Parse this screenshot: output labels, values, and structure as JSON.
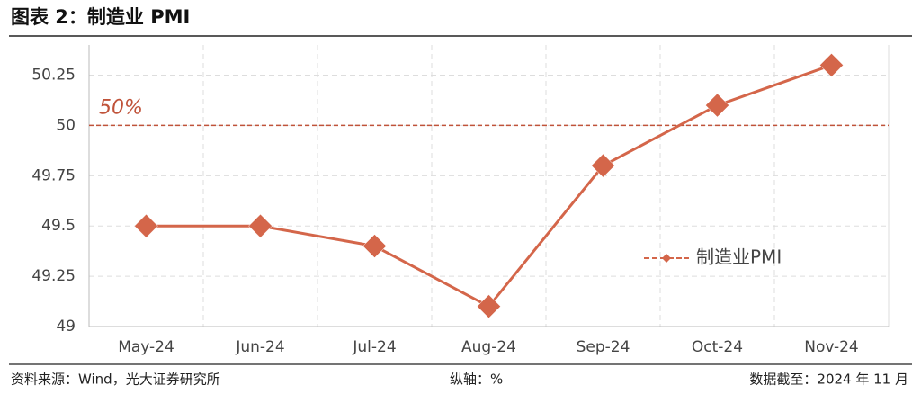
{
  "title": "图表 2：制造业 PMI",
  "chart_data": {
    "type": "line",
    "categories": [
      "May-24",
      "Jun-24",
      "Jul-24",
      "Aug-24",
      "Sep-24",
      "Oct-24",
      "Nov-24"
    ],
    "series": [
      {
        "name": "制造业PMI",
        "color": "#d4664a",
        "values": [
          49.5,
          49.5,
          49.4,
          49.1,
          49.8,
          50.1,
          50.3
        ]
      }
    ],
    "ylim": [
      49,
      50.4
    ],
    "yticks": [
      49,
      49.25,
      49.5,
      49.75,
      50,
      50.25
    ],
    "grid": true,
    "legend": "right",
    "reference_line": {
      "value": 50,
      "label": "50%",
      "color": "#c0533a"
    }
  },
  "footer": {
    "source": "资料来源：Wind，光大证券研究所",
    "axis_note": "纵轴：%",
    "date_note": "数据截至：2024 年 11 月"
  }
}
